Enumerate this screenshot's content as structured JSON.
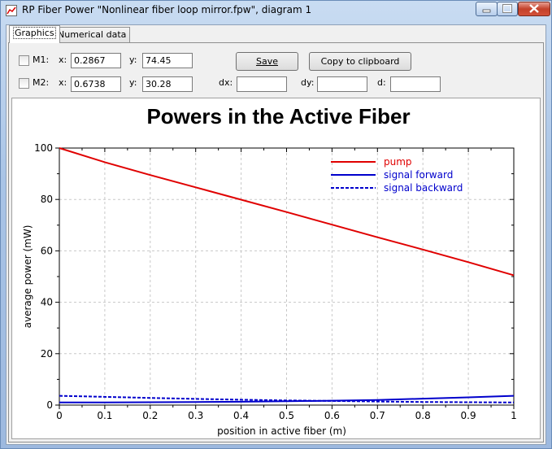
{
  "window": {
    "title": "RP Fiber Power \"Nonlinear fiber loop mirror.fpw\", diagram 1"
  },
  "tabs": [
    {
      "label": "Graphics",
      "active": true
    },
    {
      "label": "Numerical data",
      "active": false
    }
  ],
  "markers": {
    "m1": {
      "label": "M1:",
      "x_label": "x:",
      "x": "0.2867",
      "y_label": "y:",
      "y": "74.45"
    },
    "m2": {
      "label": "M2:",
      "x_label": "x:",
      "x": "0.6738",
      "y_label": "y:",
      "y": "30.28"
    }
  },
  "toolbar": {
    "save_label": "Save",
    "copy_label": "Copy to clipboard"
  },
  "deltas": {
    "dx_label": "dx:",
    "dx": "",
    "dy_label": "dy:",
    "dy": "",
    "d_label": "d:",
    "d": ""
  },
  "chart_data": {
    "type": "line",
    "title": "Powers in the Active Fiber",
    "xlabel": "position in active fiber (m)",
    "ylabel": "average power (mW)",
    "xlim": [
      0,
      1
    ],
    "ylim": [
      0,
      100
    ],
    "xticks": [
      "0",
      "0.1",
      "0.2",
      "0.3",
      "0.4",
      "0.5",
      "0.6",
      "0.7",
      "0.8",
      "0.9",
      "1"
    ],
    "yticks": [
      "0",
      "20",
      "40",
      "60",
      "80",
      "100"
    ],
    "grid": true,
    "legend_position": "top-right",
    "series": [
      {
        "name": "pump",
        "color": "#e00000",
        "dash": "solid",
        "x": [
          0,
          0.1,
          0.2,
          0.3,
          0.4,
          0.5,
          0.6,
          0.7,
          0.8,
          0.9,
          1
        ],
        "y": [
          100,
          94.5,
          89.5,
          84.7,
          79.9,
          75.1,
          70.2,
          65.3,
          60.5,
          55.6,
          50.5
        ]
      },
      {
        "name": "signal forward",
        "color": "#0000cc",
        "dash": "solid",
        "x": [
          0,
          0.1,
          0.2,
          0.3,
          0.4,
          0.5,
          0.6,
          0.7,
          0.8,
          0.9,
          1
        ],
        "y": [
          1.0,
          1.0,
          1.1,
          1.2,
          1.3,
          1.5,
          1.7,
          2.0,
          2.5,
          3.0,
          3.6
        ]
      },
      {
        "name": "signal backward",
        "color": "#0000cc",
        "dash": "dashed",
        "x": [
          0,
          0.1,
          0.2,
          0.3,
          0.4,
          0.5,
          0.6,
          0.7,
          0.8,
          0.9,
          1
        ],
        "y": [
          3.6,
          3.2,
          2.8,
          2.4,
          2.1,
          1.8,
          1.6,
          1.4,
          1.2,
          1.1,
          1.0
        ]
      }
    ]
  }
}
